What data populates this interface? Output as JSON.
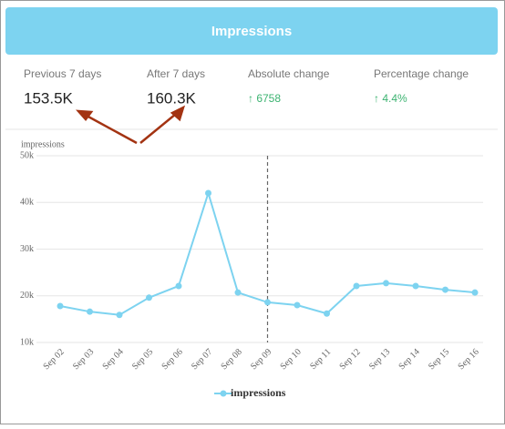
{
  "header": {
    "title": "Impressions"
  },
  "stats": [
    {
      "label": "Previous 7 days",
      "value": "153.5K"
    },
    {
      "label": "After 7 days",
      "value": "160.3K"
    },
    {
      "label": "Absolute change",
      "value": "↑ 6758"
    },
    {
      "label": "Percentage change",
      "value": "↑ 4.4%"
    }
  ],
  "chart_data": {
    "type": "line",
    "ylabel": "impressions",
    "categories": [
      "Sep 02",
      "Sep 03",
      "Sep 04",
      "Sep 05",
      "Sep 06",
      "Sep 07",
      "Sep 08",
      "Sep 09",
      "Sep 10",
      "Sep 11",
      "Sep 12",
      "Sep 13",
      "Sep 14",
      "Sep 15",
      "Sep 16"
    ],
    "series": [
      {
        "name": "impressions",
        "color": "#7dd3f0",
        "values": [
          17800,
          16600,
          15900,
          19600,
          22100,
          42000,
          20700,
          18600,
          18000,
          16200,
          22100,
          22700,
          22100,
          21300,
          20700
        ]
      }
    ],
    "ylim": [
      10000,
      50000
    ],
    "yticks": [
      {
        "value": 10000,
        "label": "10k"
      },
      {
        "value": 20000,
        "label": "20k"
      },
      {
        "value": 30000,
        "label": "30k"
      },
      {
        "value": 40000,
        "label": "40k"
      },
      {
        "value": 50000,
        "label": "50k"
      }
    ],
    "grid": true,
    "divider_at": "Sep 09",
    "legend": "bottom"
  }
}
